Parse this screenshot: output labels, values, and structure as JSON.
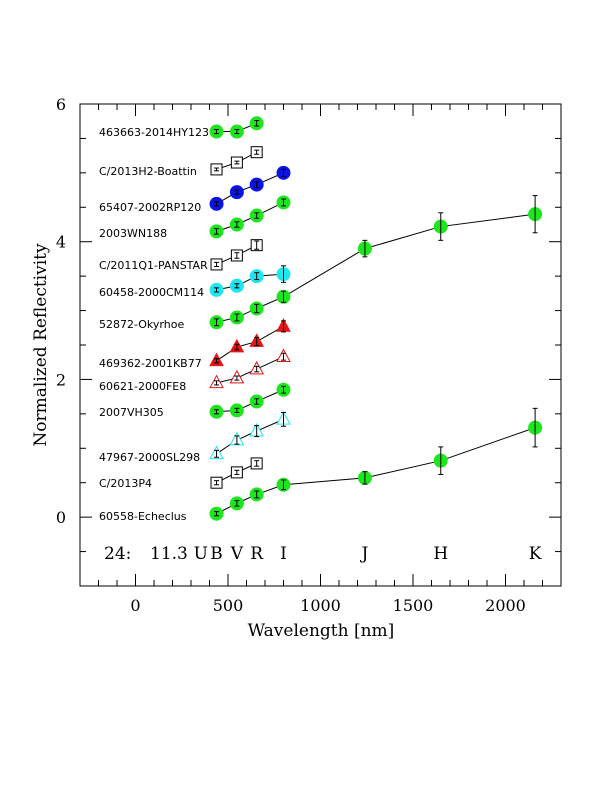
{
  "chart_data": {
    "type": "scatter",
    "xlabel": "Wavelength [nm]",
    "ylabel": "Normalized Reflectivity",
    "xlim": [
      -300,
      2300
    ],
    "ylim": [
      -1,
      6
    ],
    "xticks": [
      0,
      500,
      1000,
      1500,
      2000
    ],
    "yticks": [
      0,
      2,
      4,
      6
    ],
    "grid": false,
    "annotation_prefix": "24:",
    "annotation_value": "11.3",
    "bands": [
      {
        "label": "U",
        "x": 353
      },
      {
        "label": "B",
        "x": 438
      },
      {
        "label": "V",
        "x": 548
      },
      {
        "label": "R",
        "x": 655
      },
      {
        "label": "I",
        "x": 800
      },
      {
        "label": "J",
        "x": 1240
      },
      {
        "label": "H",
        "x": 1650
      },
      {
        "label": "K",
        "x": 2160
      }
    ],
    "series": [
      {
        "name": "463663-2014HY123",
        "marker": "circle",
        "color": "#1ee61e",
        "filled": true,
        "x": [
          438,
          548,
          655
        ],
        "y": [
          5.6,
          5.6,
          5.72
        ],
        "err": [
          0.03,
          0.03,
          0.04
        ]
      },
      {
        "name": "C/2013H2-Boattin",
        "marker": "square",
        "color": "#000000",
        "filled": false,
        "x": [
          438,
          548,
          655
        ],
        "y": [
          5.05,
          5.15,
          5.3
        ],
        "err": [
          0.02,
          0.02,
          0.03
        ]
      },
      {
        "name": "65407-2002RP120",
        "marker": "circle",
        "color": "#0a14e6",
        "filled": true,
        "x": [
          438,
          548,
          655,
          800
        ],
        "y": [
          4.55,
          4.72,
          4.83,
          5.0
        ],
        "err": [
          0.03,
          0.03,
          0.04,
          0.05
        ]
      },
      {
        "name": "2003WN188",
        "marker": "circle",
        "color": "#1ee61e",
        "filled": true,
        "x": [
          438,
          548,
          655,
          800
        ],
        "y": [
          4.15,
          4.25,
          4.38,
          4.57
        ],
        "err": [
          0.04,
          0.04,
          0.04,
          0.05
        ]
      },
      {
        "name": "C/2011Q1-PANSTAR",
        "marker": "square",
        "color": "#000000",
        "filled": false,
        "x": [
          438,
          548,
          655
        ],
        "y": [
          3.67,
          3.8,
          3.95
        ],
        "err": [
          0.03,
          0.04,
          0.06
        ]
      },
      {
        "name": "60458-2000CM114",
        "marker": "circle",
        "color": "#1ee6f0",
        "filled": true,
        "x": [
          438,
          548,
          655,
          800
        ],
        "y": [
          3.3,
          3.36,
          3.5,
          3.53
        ],
        "err": [
          0.03,
          0.03,
          0.05,
          0.12
        ]
      },
      {
        "name": "52872-Okyrhoe",
        "marker": "circle",
        "color": "#1ee61e",
        "filled": true,
        "x": [
          438,
          548,
          655,
          800,
          1240,
          1650,
          2160
        ],
        "y": [
          2.83,
          2.9,
          3.03,
          3.2,
          3.9,
          4.22,
          4.4
        ],
        "err": [
          0.05,
          0.05,
          0.06,
          0.08,
          0.12,
          0.2,
          0.27
        ]
      },
      {
        "name": "469362-2001KB77",
        "marker": "triangle",
        "color": "#e61414",
        "filled": true,
        "x": [
          438,
          548,
          655,
          800
        ],
        "y": [
          2.27,
          2.47,
          2.55,
          2.77
        ],
        "err": [
          0.03,
          0.04,
          0.06,
          0.08
        ]
      },
      {
        "name": "60621-2000FE8",
        "marker": "triangle",
        "color": "#e61414",
        "filled": false,
        "x": [
          438,
          548,
          655,
          800
        ],
        "y": [
          1.95,
          2.02,
          2.15,
          2.33
        ],
        "err": [
          0.03,
          0.03,
          0.04,
          0.05
        ]
      },
      {
        "name": "2007VH305",
        "marker": "circle",
        "color": "#1ee61e",
        "filled": true,
        "x": [
          438,
          548,
          655,
          800
        ],
        "y": [
          1.53,
          1.55,
          1.68,
          1.85
        ],
        "err": [
          0.03,
          0.03,
          0.04,
          0.05
        ]
      },
      {
        "name": "47967-2000SL298",
        "marker": "triangle",
        "color": "#1ee6f0",
        "filled": false,
        "x": [
          438,
          548,
          655,
          800
        ],
        "y": [
          0.92,
          1.12,
          1.25,
          1.42
        ],
        "err": [
          0.05,
          0.06,
          0.08,
          0.1
        ]
      },
      {
        "name": "C/2013P4",
        "marker": "square",
        "color": "#000000",
        "filled": false,
        "x": [
          438,
          548,
          655
        ],
        "y": [
          0.5,
          0.65,
          0.78
        ],
        "err": [
          0.03,
          0.03,
          0.04
        ]
      },
      {
        "name": "60558-Echeclus",
        "marker": "circle",
        "color": "#1ee61e",
        "filled": true,
        "x": [
          438,
          548,
          655,
          800,
          1240,
          1650,
          2160
        ],
        "y": [
          0.05,
          0.2,
          0.33,
          0.47,
          0.57,
          0.82,
          1.3
        ],
        "err": [
          0.03,
          0.04,
          0.05,
          0.07,
          0.09,
          0.2,
          0.28
        ]
      }
    ]
  }
}
